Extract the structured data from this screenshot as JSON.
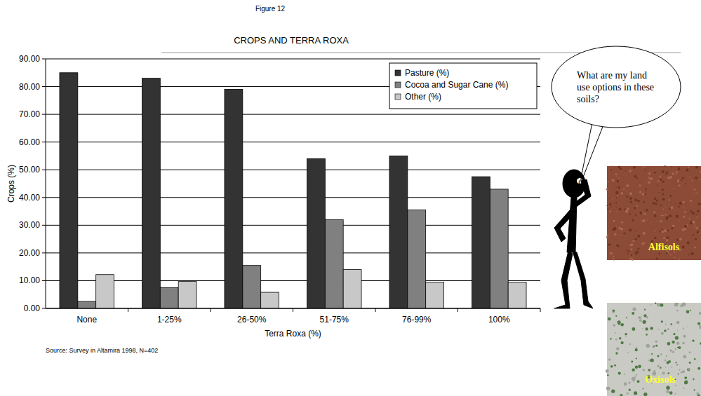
{
  "chart_data": {
    "type": "bar",
    "title": "CROPS AND TERRA ROXA",
    "x_label": "Terra Roxa (%)",
    "y_label": "Crops (%)",
    "annotations": [
      "Figure 12",
      "Source: Survey in Altamira 1998, N=402",
      "What are my land use options in these soils?",
      "Alfisols",
      "Oxisols"
    ],
    "categories": [
      "None",
      "1-25%",
      "26-50%",
      "51-75%",
      "76-99%",
      "100%"
    ],
    "series": [
      {
        "name": "Pasture (%)",
        "color": "#333333",
        "values": [
          85,
          83,
          79,
          54,
          55,
          47.5
        ]
      },
      {
        "name": "Cocoa and Sugar Cane (%)",
        "color": "#808080",
        "values": [
          2.5,
          7.5,
          15.5,
          32,
          35.5,
          43
        ]
      },
      {
        "name": "Other (%)",
        "color": "#c8c8c8",
        "values": [
          12.2,
          9.7,
          5.8,
          14,
          9.5,
          9.5
        ]
      }
    ],
    "ylim": [
      0,
      90
    ],
    "yticks": [
      {
        "value": 0,
        "label": "0.00"
      },
      {
        "value": 10,
        "label": "10.00"
      },
      {
        "value": 20,
        "label": "20.00"
      },
      {
        "value": 30,
        "label": "30.00"
      },
      {
        "value": 40,
        "label": "40.00"
      },
      {
        "value": 50,
        "label": "50.00"
      },
      {
        "value": 60,
        "label": "60.00"
      },
      {
        "value": 70,
        "label": "70.00"
      },
      {
        "value": 80,
        "label": "80.00"
      },
      {
        "value": 90,
        "label": "90.00"
      }
    ],
    "grid": true,
    "legend": "top-right"
  }
}
